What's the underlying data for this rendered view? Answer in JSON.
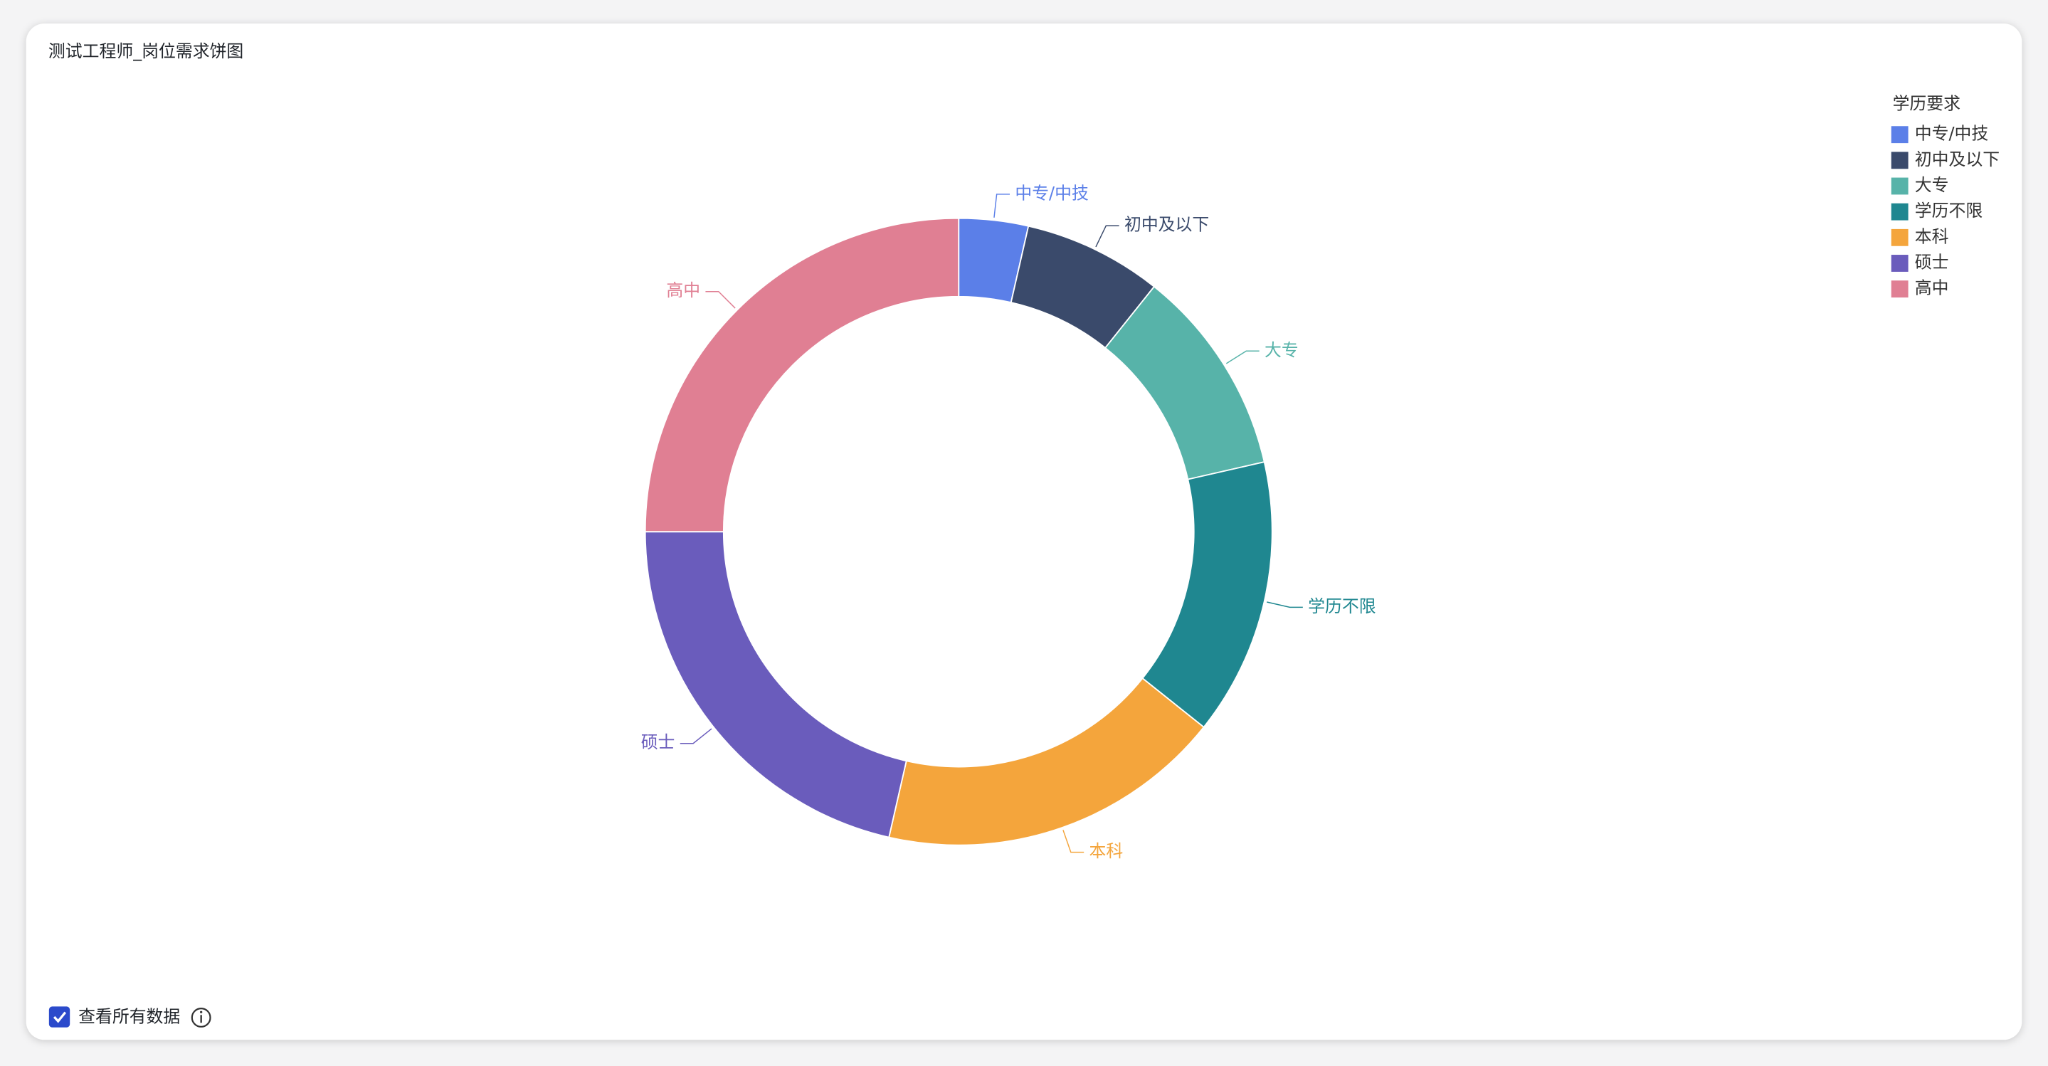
{
  "chart_data": {
    "type": "pie",
    "title": "测试工程师_岗位需求饼图",
    "legend_title": "学历要求",
    "categories": [
      "中专/中技",
      "初中及以下",
      "大专",
      "学历不限",
      "本科",
      "硕士",
      "高中"
    ],
    "values": [
      1,
      2,
      3,
      4,
      5,
      6,
      7
    ],
    "colors": [
      "#5b7fe8",
      "#3a4a6b",
      "#57b3a9",
      "#1f8790",
      "#f4a53c",
      "#6a5cbc",
      "#e07f93"
    ],
    "legend": "top-right"
  },
  "footer": {
    "checkbox_label": "查看所有数据",
    "checked": true
  }
}
